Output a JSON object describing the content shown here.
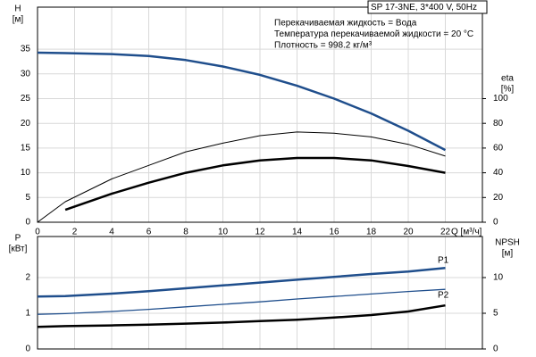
{
  "chart_data": [
    {
      "type": "line",
      "title": "SP 17-3NE, 3*400 V, 50Hz",
      "notes": [
        "Перекачиваемая жидкость = Вода",
        "Температура перекачиваемой жидкости = 20 °C",
        "Плотность = 998.2 кг/м³"
      ],
      "x_label": "Q [м³/ч]",
      "y_label": [
        "H",
        "[м]"
      ],
      "y2_label": [
        "eta",
        "[%]"
      ],
      "x": [
        0,
        1.5,
        4,
        6,
        8,
        10,
        12,
        14,
        16,
        18,
        20,
        22
      ],
      "xlim": [
        0,
        24
      ],
      "xticks": [
        0,
        2,
        4,
        6,
        8,
        10,
        12,
        14,
        16,
        18,
        20,
        22
      ],
      "ylim": [
        0,
        43.5
      ],
      "yticks": [
        0,
        5,
        10,
        15,
        20,
        25,
        30,
        35
      ],
      "y2lim": [
        0,
        174
      ],
      "y2ticks": [
        0,
        20,
        40,
        60,
        80,
        100
      ],
      "grid": true,
      "series": [
        {
          "color": "#1f4e8c",
          "width": 2.5,
          "values": [
            34.3,
            34.2,
            34.0,
            33.6,
            32.8,
            31.5,
            29.8,
            27.6,
            25.0,
            22.0,
            18.5,
            14.6
          ]
        },
        {
          "color": "#000000",
          "width": 1,
          "axis": "y2",
          "values": [
            0,
            16.6,
            35,
            46,
            57,
            64,
            70,
            73,
            72,
            69,
            63,
            53.5
          ]
        },
        {
          "color": "#000000",
          "width": 2.5,
          "axis": "y2",
          "values": [
            null,
            10,
            23,
            32,
            40,
            46,
            50,
            52,
            52,
            50,
            45.5,
            40
          ]
        }
      ]
    },
    {
      "type": "line",
      "y_label": [
        "P",
        "[кВт]"
      ],
      "y2_label": [
        "NPSH",
        "[м]"
      ],
      "x": [
        0,
        1.5,
        4,
        6,
        8,
        10,
        12,
        14,
        16,
        18,
        20,
        22
      ],
      "xlim": [
        0,
        24
      ],
      "xticks": [
        0,
        2,
        4,
        6,
        8,
        10,
        12,
        14,
        16,
        18,
        20,
        22
      ],
      "ylim": [
        0,
        3.15
      ],
      "yticks": [
        0,
        1,
        2
      ],
      "y2lim": [
        0,
        15.75
      ],
      "y2ticks": [
        0,
        5,
        10
      ],
      "grid": true,
      "annotations": [
        "P1",
        "P2"
      ],
      "series": [
        {
          "color": "#1f4e8c",
          "width": 2.5,
          "values": [
            1.47,
            1.48,
            1.55,
            1.62,
            1.7,
            1.78,
            1.86,
            1.94,
            2.02,
            2.1,
            2.17,
            2.27
          ]
        },
        {
          "color": "#1f4e8c",
          "width": 1.3,
          "values": [
            0.97,
            0.99,
            1.05,
            1.11,
            1.18,
            1.25,
            1.32,
            1.4,
            1.47,
            1.54,
            1.61,
            1.67
          ]
        },
        {
          "color": "#000000",
          "width": 2.5,
          "axis": "y2",
          "values": [
            3.1,
            3.2,
            3.3,
            3.4,
            3.55,
            3.7,
            3.9,
            4.1,
            4.4,
            4.75,
            5.25,
            6.1
          ]
        }
      ]
    }
  ]
}
